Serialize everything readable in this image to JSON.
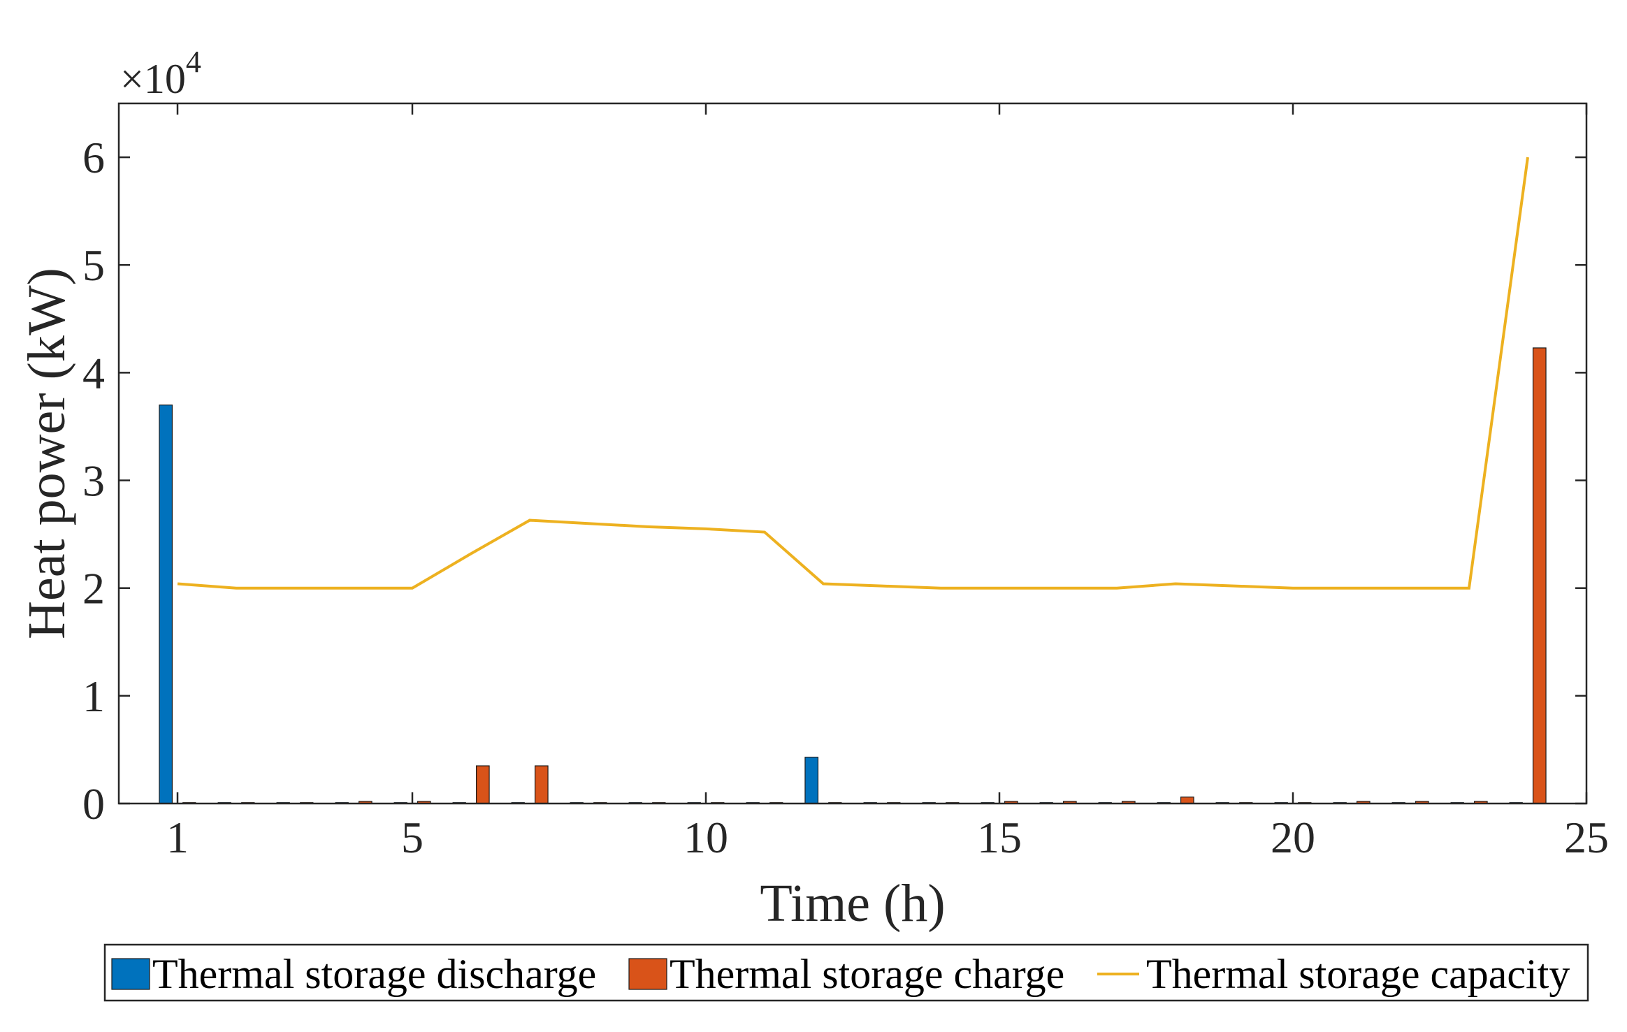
{
  "chart_data": {
    "type": "bar",
    "title": "",
    "xlabel": "Time (h)",
    "ylabel": "Heat power (kW)",
    "y_exponent_label": {
      "base": "×10",
      "exp": "4"
    },
    "xlim": [
      0,
      25
    ],
    "ylim": [
      0,
      65000
    ],
    "xticks": [
      1,
      5,
      10,
      15,
      20,
      25
    ],
    "yticks": [
      0,
      10000,
      20000,
      30000,
      40000,
      50000,
      60000
    ],
    "ytick_labels": [
      "0",
      "1",
      "2",
      "3",
      "4",
      "5",
      "6"
    ],
    "grid": false,
    "legend_position": "bottom-outside",
    "x": [
      1,
      2,
      3,
      4,
      5,
      6,
      7,
      8,
      9,
      10,
      11,
      12,
      13,
      14,
      15,
      16,
      17,
      18,
      19,
      20,
      21,
      22,
      23,
      24
    ],
    "series": [
      {
        "name": "Thermal storage discharge",
        "kind": "bar",
        "color": "#0072BD",
        "values": [
          37000,
          0,
          0,
          0,
          0,
          0,
          0,
          0,
          0,
          0,
          0,
          4300,
          0,
          0,
          0,
          0,
          0,
          0,
          0,
          0,
          0,
          0,
          0,
          0
        ]
      },
      {
        "name": "Thermal storage charge",
        "kind": "bar",
        "color": "#D95319",
        "values": [
          0,
          0,
          0,
          200,
          200,
          3500,
          3500,
          0,
          0,
          0,
          0,
          0,
          0,
          0,
          200,
          200,
          200,
          600,
          0,
          0,
          200,
          200,
          200,
          42300
        ]
      },
      {
        "name": "Thermal storage capacity",
        "kind": "line",
        "color": "#EDB120",
        "values": [
          20400,
          20000,
          20000,
          20000,
          20000,
          23200,
          26300,
          26000,
          25700,
          25500,
          25200,
          20400,
          20200,
          20000,
          20000,
          20000,
          20000,
          20400,
          20200,
          20000,
          20000,
          20000,
          20000,
          60000
        ]
      }
    ]
  }
}
